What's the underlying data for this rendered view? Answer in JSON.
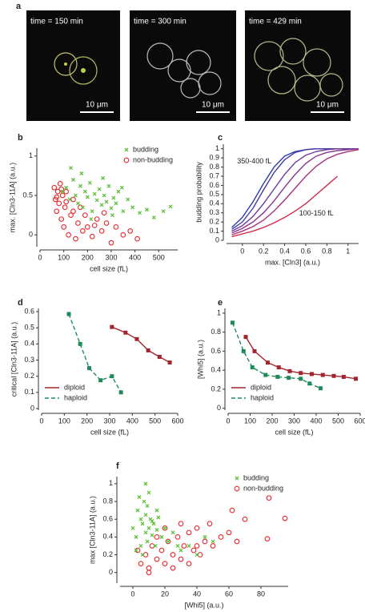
{
  "images_panel": {
    "panel": "a",
    "images": [
      {
        "caption": "time = 150 min",
        "scale_bar": "10 μm"
      },
      {
        "caption": "time = 300 min",
        "scale_bar": "10 μm"
      },
      {
        "caption": "time = 429 min",
        "scale_bar": "10 μm"
      }
    ]
  },
  "chart_data": [
    {
      "panel": "b",
      "type": "scatter",
      "x_label": "cell size (fL)",
      "y_label": "max. [Cln3-11A] (a.u.)",
      "xlim": [
        0,
        580
      ],
      "ylim": [
        -0.15,
        1.1
      ],
      "xticks": [
        0,
        100,
        200,
        300,
        400,
        500
      ],
      "yticks": [
        0,
        0.5,
        1
      ],
      "legend": "upper right",
      "series": [
        {
          "name": "non-budding",
          "color": "#e8262b",
          "marker": "circle-open",
          "x": [
            60,
            65,
            70,
            75,
            80,
            85,
            90,
            95,
            100,
            105,
            110,
            120,
            130,
            140,
            150,
            160,
            170,
            180,
            200,
            220,
            240,
            260,
            280,
            300,
            320,
            350,
            380,
            410,
            70,
            90,
            110,
            140,
            190,
            230,
            270
          ],
          "values": [
            0.6,
            0.45,
            0.3,
            0.55,
            0.4,
            0.65,
            0.2,
            0.5,
            0.1,
            0.35,
            0.55,
            0,
            0.25,
            0.45,
            -0.05,
            0.15,
            0.35,
            0.05,
            0.1,
            -0.02,
            0.2,
            0.05,
            0.15,
            -0.1,
            0.1,
            0,
            0.05,
            -0.05,
            0.48,
            0.58,
            0.42,
            0.3,
            0.25,
            0.12,
            0.28
          ]
        },
        {
          "name": "budding",
          "color": "#5fbf3a",
          "marker": "cross",
          "x": [
            95,
            110,
            125,
            140,
            150,
            160,
            170,
            180,
            190,
            200,
            210,
            220,
            230,
            240,
            250,
            260,
            270,
            280,
            290,
            300,
            310,
            320,
            330,
            350,
            370,
            390,
            420,
            450,
            480,
            520,
            550,
            130,
            175,
            215,
            265,
            305,
            345
          ],
          "values": [
            0.55,
            0.6,
            0.45,
            0.7,
            0.5,
            0.4,
            0.62,
            0.35,
            0.55,
            0.48,
            0.66,
            0.3,
            0.52,
            0.44,
            0.58,
            0.38,
            0.5,
            0.42,
            0.62,
            0.34,
            0.47,
            0.4,
            0.55,
            0.3,
            0.45,
            0.35,
            0.28,
            0.32,
            0.22,
            0.3,
            0.36,
            0.85,
            0.78,
            0.2,
            0.72,
            0.25,
            0.6
          ]
        }
      ]
    },
    {
      "panel": "c",
      "type": "line",
      "x_label": "max. [Cln3] (a.u.)",
      "y_label": "budding probability",
      "xlim": [
        -0.15,
        1.1
      ],
      "ylim": [
        0,
        1.05
      ],
      "xticks": [
        0,
        0.2,
        0.4,
        0.6,
        0.8,
        1
      ],
      "yticks": [
        0,
        0.1,
        0.2,
        0.3,
        0.4,
        0.5,
        0.6,
        0.7,
        0.8,
        0.9,
        1
      ],
      "annotations": [
        "350-400 fL",
        "100-150 fL"
      ],
      "x": [
        -0.1,
        0,
        0.1,
        0.2,
        0.3,
        0.4,
        0.5,
        0.6,
        0.7,
        0.8,
        0.9,
        1,
        1.1
      ],
      "series": [
        {
          "color": "#2b3fa8",
          "values": [
            0.14,
            0.25,
            0.42,
            0.62,
            0.8,
            0.92,
            0.97,
            0.99,
            1,
            1,
            1,
            1,
            1
          ]
        },
        {
          "color": "#4a3aa8",
          "values": [
            0.12,
            0.2,
            0.35,
            0.55,
            0.74,
            0.88,
            0.96,
            0.99,
            1,
            1,
            1,
            1,
            1
          ]
        },
        {
          "color": "#6b3a9e",
          "values": [
            0.1,
            0.16,
            0.26,
            0.4,
            0.56,
            0.72,
            0.85,
            0.93,
            0.97,
            0.99,
            1,
            1,
            1
          ]
        },
        {
          "color": "#8a3590",
          "values": [
            0.08,
            0.13,
            0.2,
            0.3,
            0.43,
            0.58,
            0.72,
            0.84,
            0.92,
            0.96,
            0.98,
            0.99,
            1
          ]
        },
        {
          "color": "#a83080",
          "values": [
            0.06,
            0.1,
            0.15,
            0.22,
            0.32,
            0.44,
            0.57,
            0.7,
            0.81,
            0.89,
            0.94,
            0.97,
            0.99
          ]
        },
        {
          "color": "#d02a4a",
          "values": [
            0.04,
            0.07,
            0.1,
            0.14,
            0.19,
            0.25,
            0.32,
            0.4,
            0.5,
            0.6,
            0.7,
            null,
            null
          ]
        }
      ]
    },
    {
      "panel": "d",
      "type": "line",
      "x_label": "cell size (fL)",
      "y_label": "critical [Cln3-11A] (a.u.)",
      "xlim": [
        0,
        600
      ],
      "ylim": [
        -0.01,
        0.62
      ],
      "xticks": [
        0,
        100,
        200,
        300,
        400,
        500,
        600
      ],
      "yticks": [
        0,
        0.1,
        0.2,
        0.3,
        0.4,
        0.5,
        0.6
      ],
      "legend": "lower left",
      "series": [
        {
          "name": "haploid",
          "color": "#1e8a5a",
          "dash": true,
          "x": [
            120,
            170,
            210,
            260,
            310,
            350
          ],
          "values": [
            0.585,
            0.4,
            0.25,
            0.175,
            0.2,
            0.1
          ]
        },
        {
          "name": "diploid",
          "color": "#a3262e",
          "dash": false,
          "x": [
            310,
            370,
            420,
            470,
            520,
            565
          ],
          "values": [
            0.505,
            0.47,
            0.43,
            0.36,
            0.32,
            0.285
          ]
        }
      ]
    },
    {
      "panel": "e",
      "type": "line",
      "x_label": "cell size (fL)",
      "y_label": "[Whi5] (a.u.)",
      "xlim": [
        0,
        600
      ],
      "ylim": [
        -0.02,
        1.05
      ],
      "xticks": [
        0,
        100,
        200,
        300,
        400,
        500,
        600
      ],
      "yticks": [
        0,
        0.2,
        0.4,
        0.6,
        0.8,
        1
      ],
      "legend": "lower left",
      "series": [
        {
          "name": "haploid",
          "color": "#1e8a5a",
          "dash": true,
          "x": [
            20,
            70,
            110,
            170,
            225,
            275,
            330,
            370,
            420
          ],
          "values": [
            0.9,
            0.6,
            0.43,
            0.35,
            0.33,
            0.32,
            0.31,
            0.26,
            0.21
          ]
        },
        {
          "name": "diploid",
          "color": "#a3262e",
          "dash": false,
          "x": [
            80,
            120,
            180,
            230,
            280,
            330,
            380,
            430,
            480,
            525,
            580
          ],
          "values": [
            0.75,
            0.6,
            0.48,
            0.43,
            0.39,
            0.37,
            0.36,
            0.35,
            0.34,
            0.33,
            0.31
          ]
        }
      ]
    },
    {
      "panel": "f",
      "type": "scatter",
      "x_label": "[Whi5] (a.u.)",
      "y_label": "max [Cln3-11A] (a.u.)",
      "xlim": [
        -8,
        97
      ],
      "ylim": [
        -0.12,
        1.08
      ],
      "xticks": [
        0,
        20,
        40,
        60,
        80
      ],
      "yticks": [
        0,
        0.2,
        0.4,
        0.6,
        0.8,
        1
      ],
      "legend": "upper right",
      "series": [
        {
          "name": "non-budding",
          "color": "#e8262b",
          "marker": "circle-open",
          "x": [
            5,
            8,
            10,
            12,
            15,
            18,
            20,
            22,
            25,
            28,
            30,
            32,
            35,
            38,
            40,
            42,
            45,
            48,
            50,
            55,
            60,
            65,
            70,
            10,
            15,
            20,
            25,
            30,
            35,
            40,
            85,
            95,
            84,
            62,
            3
          ],
          "values": [
            0.1,
            0.2,
            0.05,
            0.3,
            0.15,
            0.25,
            0.1,
            0.35,
            0.2,
            0.4,
            0.15,
            0.3,
            0.45,
            0.25,
            0.5,
            0.2,
            0.35,
            0.55,
            0.3,
            0.4,
            0.45,
            0.35,
            0.6,
            0,
            0.4,
            0.5,
            0.05,
            0.55,
            0.1,
            0.3,
            0.84,
            0.61,
            0.38,
            0.7,
            0.25
          ]
        },
        {
          "name": "budding",
          "color": "#5fbf3a",
          "marker": "cross",
          "x": [
            0,
            2,
            3,
            5,
            5,
            6,
            7,
            8,
            8,
            9,
            10,
            10,
            11,
            12,
            13,
            14,
            15,
            16,
            18,
            20,
            22,
            25,
            28,
            30,
            4,
            6,
            9,
            12,
            15,
            35,
            40,
            45,
            50,
            2,
            8
          ],
          "values": [
            0.5,
            0.4,
            0.7,
            0.3,
            0.6,
            0.55,
            0.8,
            0.45,
            0.65,
            0.35,
            0.5,
            0.9,
            0.6,
            0.42,
            0.55,
            0.3,
            0.48,
            0.62,
            0.4,
            0.5,
            0.35,
            0.45,
            0.3,
            0.25,
            0.85,
            0.2,
            0.75,
            0.58,
            0.7,
            0.3,
            0.2,
            0.4,
            0.35,
            0.25,
            1
          ]
        }
      ]
    }
  ]
}
